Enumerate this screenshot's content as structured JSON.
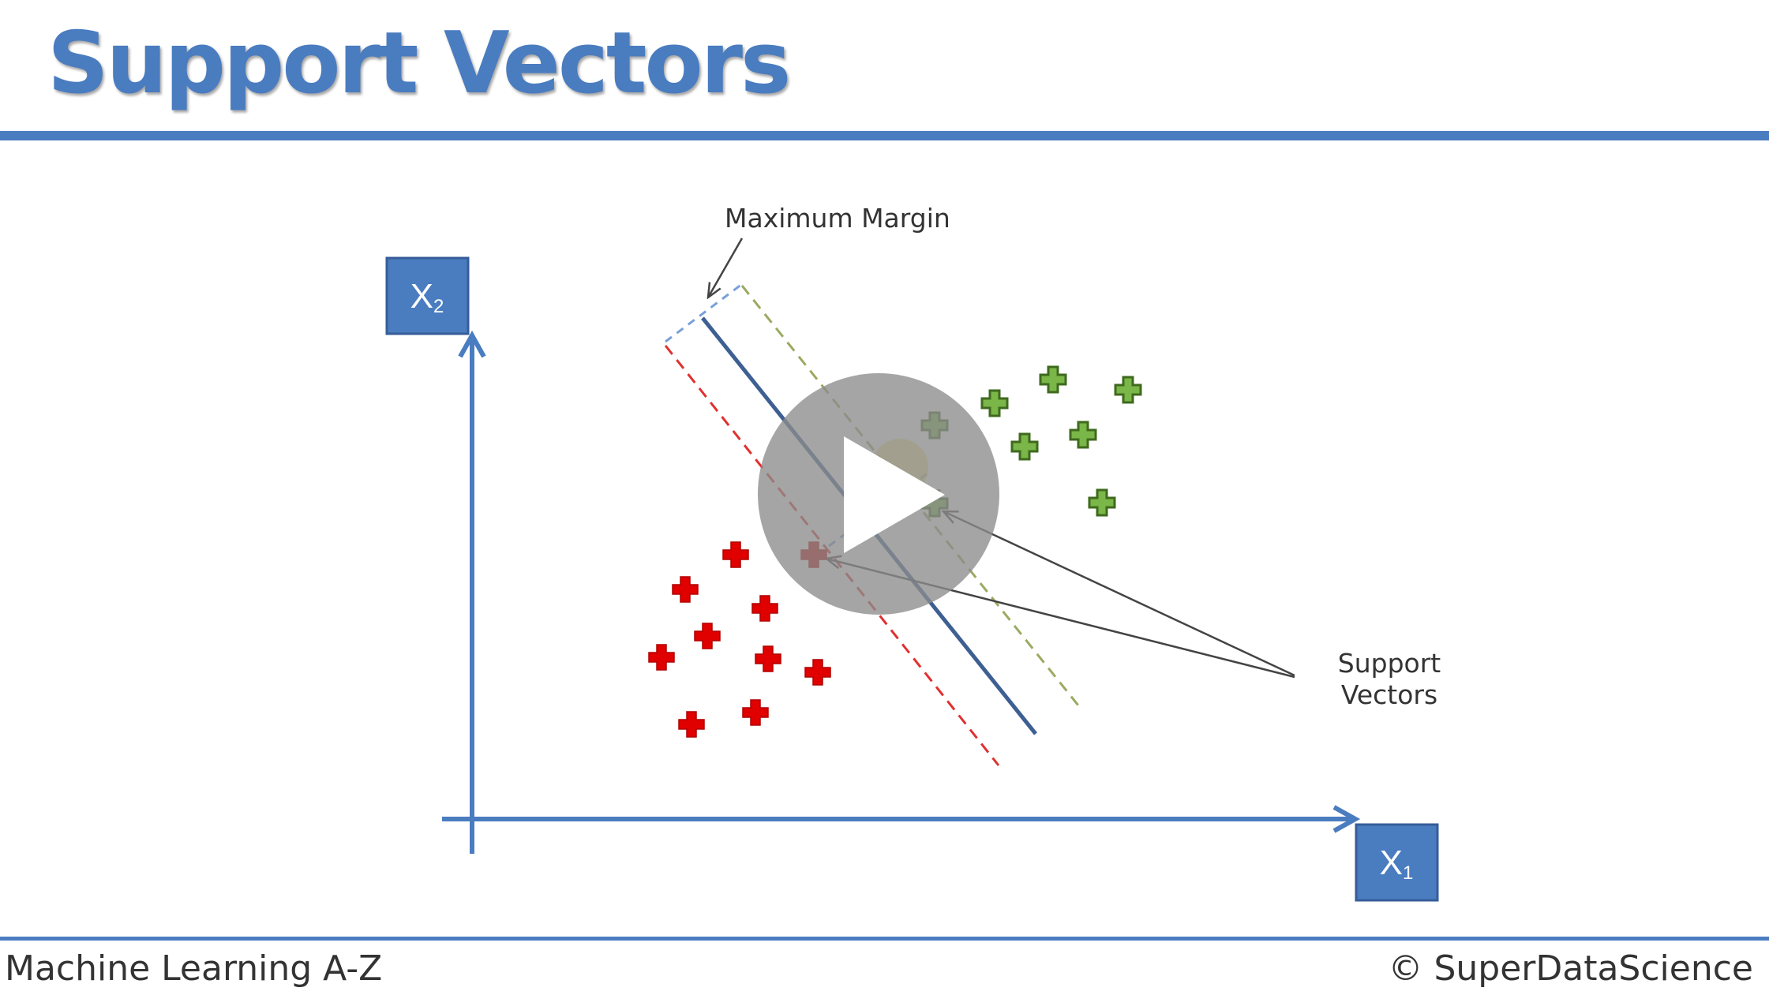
{
  "slide": {
    "title": "Support Vectors"
  },
  "diagram": {
    "x_axis_label": "X",
    "x_axis_subscript": "1",
    "y_axis_label": "X",
    "y_axis_subscript": "2",
    "annotations": {
      "maximum_margin": "Maximum Margin",
      "support_vectors_line1": "Support",
      "support_vectors_line2": "Vectors"
    }
  },
  "footer": {
    "left": "Machine Learning A-Z",
    "right": "© SuperDataScience"
  },
  "video": {
    "play_icon": "play-icon"
  },
  "colors": {
    "accent": "#4a7cc0",
    "positive_class": "#7ab648",
    "negative_class": "#e00000",
    "hyperplane": "#3e5f92",
    "play_overlay": "#8c8c8c"
  }
}
